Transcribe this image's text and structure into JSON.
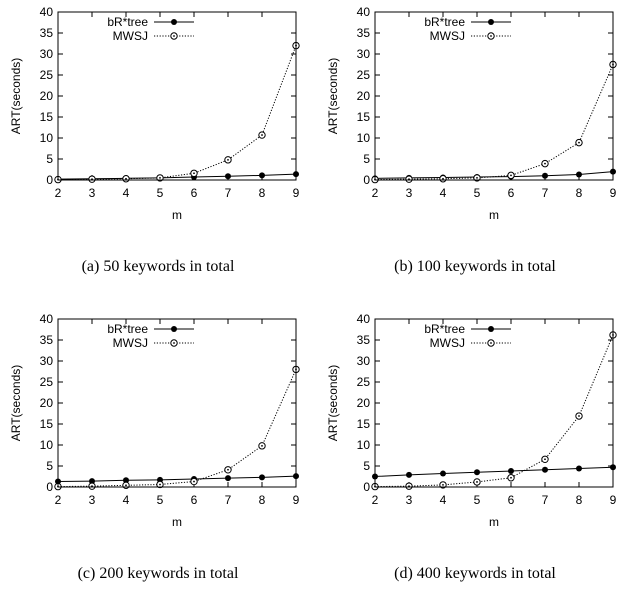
{
  "chart_data": [
    {
      "type": "line",
      "caption_id": "(a)",
      "caption_text": "50 keywords in total",
      "xlabel": "m",
      "ylabel": "ART(seconds)",
      "x": [
        2,
        3,
        4,
        5,
        6,
        7,
        8,
        9
      ],
      "xlim": [
        2,
        9
      ],
      "ylim": [
        0,
        40
      ],
      "yticks": [
        0,
        5,
        10,
        15,
        20,
        25,
        30,
        35,
        40
      ],
      "legend_position": "top-left",
      "series": [
        {
          "name": "bR*tree",
          "marker": "filled-circle",
          "line": "solid",
          "values": [
            0.2,
            0.3,
            0.4,
            0.5,
            0.7,
            0.9,
            1.1,
            1.4
          ]
        },
        {
          "name": "MWSJ",
          "marker": "open-circle",
          "line": "dotted",
          "values": [
            0.1,
            0.2,
            0.3,
            0.5,
            1.6,
            4.8,
            10.7,
            32.0
          ]
        }
      ]
    },
    {
      "type": "line",
      "caption_id": "(b)",
      "caption_text": "100 keywords in total",
      "xlabel": "m",
      "ylabel": "ART(seconds)",
      "x": [
        2,
        3,
        4,
        5,
        6,
        7,
        8,
        9
      ],
      "xlim": [
        2,
        9
      ],
      "ylim": [
        0,
        40
      ],
      "yticks": [
        0,
        5,
        10,
        15,
        20,
        25,
        30,
        35,
        40
      ],
      "legend_position": "top-left",
      "series": [
        {
          "name": "bR*tree",
          "marker": "filled-circle",
          "line": "solid",
          "values": [
            0.4,
            0.5,
            0.6,
            0.7,
            0.8,
            1.0,
            1.3,
            2.0
          ]
        },
        {
          "name": "MWSJ",
          "marker": "open-circle",
          "line": "dotted",
          "values": [
            0.1,
            0.2,
            0.3,
            0.5,
            1.1,
            3.9,
            8.9,
            27.5
          ]
        }
      ]
    },
    {
      "type": "line",
      "caption_id": "(c)",
      "caption_text": "200 keywords in total",
      "xlabel": "m",
      "ylabel": "ART(seconds)",
      "x": [
        2,
        3,
        4,
        5,
        6,
        7,
        8,
        9
      ],
      "xlim": [
        2,
        9
      ],
      "ylim": [
        0,
        40
      ],
      "yticks": [
        0,
        5,
        10,
        15,
        20,
        25,
        30,
        35,
        40
      ],
      "legend_position": "top-left",
      "series": [
        {
          "name": "bR*tree",
          "marker": "filled-circle",
          "line": "solid",
          "values": [
            1.3,
            1.4,
            1.6,
            1.7,
            1.9,
            2.1,
            2.3,
            2.6
          ]
        },
        {
          "name": "MWSJ",
          "marker": "open-circle",
          "line": "dotted",
          "values": [
            0.1,
            0.2,
            0.4,
            0.6,
            1.3,
            4.1,
            9.8,
            28.0
          ]
        }
      ]
    },
    {
      "type": "line",
      "caption_id": "(d)",
      "caption_text": "400 keywords in total",
      "xlabel": "m",
      "ylabel": "ART(seconds)",
      "x": [
        2,
        3,
        4,
        5,
        6,
        7,
        8,
        9
      ],
      "xlim": [
        2,
        9
      ],
      "ylim": [
        0,
        40
      ],
      "yticks": [
        0,
        5,
        10,
        15,
        20,
        25,
        30,
        35,
        40
      ],
      "legend_position": "top-left",
      "series": [
        {
          "name": "bR*tree",
          "marker": "filled-circle",
          "line": "solid",
          "values": [
            2.5,
            2.9,
            3.2,
            3.5,
            3.8,
            4.1,
            4.4,
            4.7
          ]
        },
        {
          "name": "MWSJ",
          "marker": "open-circle",
          "line": "dotted",
          "values": [
            0.1,
            0.2,
            0.5,
            1.2,
            2.2,
            6.6,
            16.9,
            36.2
          ]
        }
      ]
    }
  ]
}
